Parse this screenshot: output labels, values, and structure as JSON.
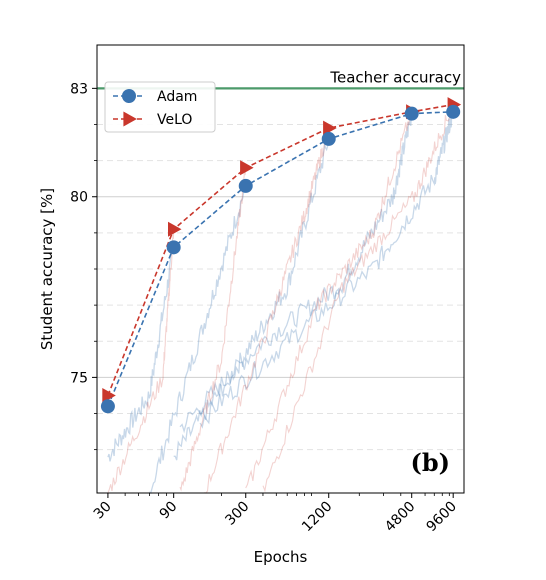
{
  "chart_data": {
    "type": "line",
    "xscale": "log",
    "xlabel": "Epochs",
    "ylabel": "Student accuracy [%]",
    "xlim": [
      25,
      11500
    ],
    "ylim": [
      71.8,
      84.2
    ],
    "x_ticks": [
      30,
      90,
      300,
      1200,
      4800,
      9600
    ],
    "x_tick_labels": [
      "30",
      "90",
      "300",
      "1200",
      "4800",
      "9600"
    ],
    "y_ticks": [
      75,
      80,
      83
    ],
    "y_tick_labels": [
      "75",
      "80",
      "83"
    ],
    "y_minor_grid": [
      73,
      74,
      76,
      77,
      78,
      79,
      81,
      82
    ],
    "reference_line": {
      "label": "Teacher accuracy",
      "y": 83,
      "color": "#4c9a6a"
    },
    "panel_label": "(b)",
    "legend_position": "upper left",
    "series": [
      {
        "name": "Adam",
        "color": "#3a73b0",
        "marker": "circle",
        "line": "dashed",
        "x": [
          30,
          90,
          300,
          1200,
          4800,
          9600
        ],
        "y": [
          74.2,
          78.6,
          80.3,
          81.6,
          82.3,
          82.35
        ]
      },
      {
        "name": "VeLO",
        "color": "#c9372c",
        "marker": "triangle-right",
        "line": "dashed",
        "x": [
          30,
          90,
          300,
          1200,
          4800,
          9600
        ],
        "y": [
          74.5,
          79.1,
          80.8,
          81.9,
          82.35,
          82.55
        ]
      }
    ],
    "training_curves": {
      "Adam": [
        [
          [
            30,
            72.8
          ],
          [
            60,
            74.5
          ],
          [
            90,
            78.6
          ]
        ],
        [
          [
            60,
            71.8
          ],
          [
            150,
            76.5
          ],
          [
            300,
            80.3
          ]
        ],
        [
          [
            90,
            72.8
          ],
          [
            250,
            75.2
          ],
          [
            600,
            77.5
          ],
          [
            1200,
            81.6
          ]
        ],
        [
          [
            100,
            73.6
          ],
          [
            400,
            76.0
          ],
          [
            1500,
            77.6
          ],
          [
            3500,
            80.0
          ],
          [
            4800,
            82.3
          ]
        ],
        [
          [
            140,
            73.8
          ],
          [
            600,
            76.0
          ],
          [
            2500,
            78.0
          ],
          [
            7000,
            80.5
          ],
          [
            9600,
            82.35
          ]
        ]
      ],
      "VeLO": [
        [
          [
            30,
            71.8
          ],
          [
            75,
            75.0
          ],
          [
            90,
            79.1
          ]
        ],
        [
          [
            100,
            71.8
          ],
          [
            200,
            75.5
          ],
          [
            300,
            80.8
          ]
        ],
        [
          [
            150,
            71.8
          ],
          [
            450,
            76.5
          ],
          [
            800,
            79.5
          ],
          [
            1200,
            81.9
          ]
        ],
        [
          [
            300,
            71.8
          ],
          [
            1000,
            77.0
          ],
          [
            2500,
            79.0
          ],
          [
            4800,
            82.35
          ]
        ],
        [
          [
            400,
            71.8
          ],
          [
            1500,
            77.5
          ],
          [
            5000,
            80.0
          ],
          [
            9600,
            82.55
          ]
        ]
      ]
    }
  }
}
